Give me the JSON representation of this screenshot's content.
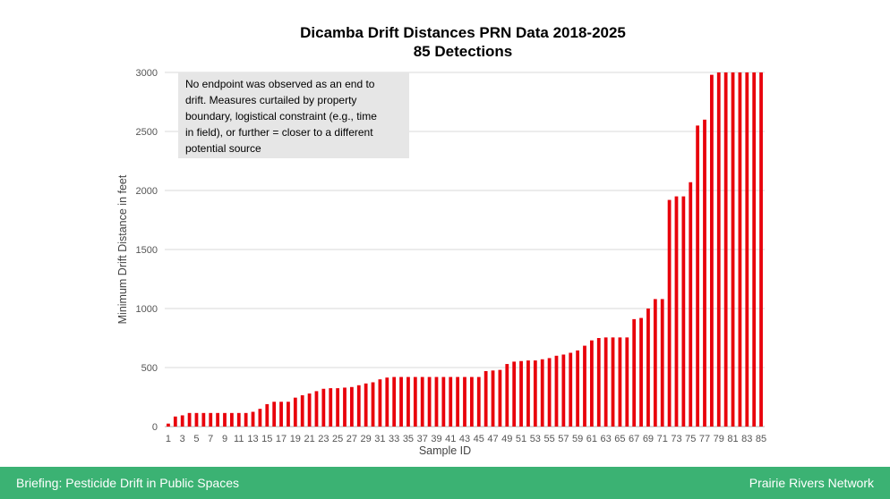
{
  "chart_data": {
    "type": "bar",
    "title": "Dicamba Drift Distances PRN Data 2018-2025",
    "subtitle": "85 Detections",
    "xlabel": "Sample ID",
    "ylabel": "Minimum Drift Distance in feet",
    "ylim": [
      0,
      3000
    ],
    "yticks": [
      0,
      500,
      1000,
      1500,
      2000,
      2500,
      3000
    ],
    "grid": true,
    "bar_color": "#e8000b",
    "categories": [
      "1",
      "2",
      "3",
      "4",
      "5",
      "6",
      "7",
      "8",
      "9",
      "10",
      "11",
      "12",
      "13",
      "14",
      "15",
      "16",
      "17",
      "18",
      "19",
      "20",
      "21",
      "22",
      "23",
      "24",
      "25",
      "26",
      "27",
      "28",
      "29",
      "30",
      "31",
      "32",
      "33",
      "34",
      "35",
      "36",
      "37",
      "38",
      "39",
      "40",
      "41",
      "42",
      "43",
      "44",
      "45",
      "46",
      "47",
      "48",
      "49",
      "50",
      "51",
      "52",
      "53",
      "54",
      "55",
      "56",
      "57",
      "58",
      "59",
      "60",
      "61",
      "62",
      "63",
      "64",
      "65",
      "66",
      "67",
      "68",
      "69",
      "70",
      "71",
      "72",
      "73",
      "74",
      "75",
      "76",
      "77",
      "78",
      "79",
      "80",
      "81",
      "82",
      "83",
      "84",
      "85"
    ],
    "xtick_labels": [
      "1",
      "3",
      "5",
      "7",
      "9",
      "11",
      "13",
      "15",
      "17",
      "19",
      "21",
      "23",
      "25",
      "27",
      "29",
      "31",
      "33",
      "35",
      "37",
      "39",
      "41",
      "43",
      "45",
      "47",
      "49",
      "51",
      "53",
      "55",
      "57",
      "59",
      "61",
      "63",
      "65",
      "67",
      "69",
      "71",
      "73",
      "75",
      "77",
      "79",
      "81",
      "83",
      "85"
    ],
    "values": [
      25,
      85,
      95,
      115,
      115,
      115,
      115,
      115,
      115,
      115,
      115,
      115,
      125,
      150,
      190,
      210,
      210,
      210,
      245,
      265,
      280,
      300,
      320,
      325,
      325,
      330,
      335,
      350,
      365,
      375,
      400,
      415,
      420,
      420,
      420,
      420,
      420,
      420,
      420,
      420,
      420,
      420,
      420,
      420,
      420,
      470,
      475,
      480,
      530,
      550,
      555,
      560,
      560,
      570,
      580,
      600,
      610,
      625,
      645,
      685,
      730,
      750,
      755,
      755,
      755,
      755,
      910,
      920,
      1000,
      1080,
      1080,
      1920,
      1950,
      1950,
      2070,
      2550,
      2600,
      2980,
      3000,
      3000,
      3000,
      3000,
      3000,
      3000,
      3000
    ],
    "annotation": "No endpoint was observed as an end to drift.  Measures curtailed by property boundary, logistical constraint (e.g., time in field), or further = closer to a different potential source"
  },
  "annotation_lines": [
    "No endpoint was observed as an end to",
    "drift.  Measures curtailed by property",
    "boundary, logistical constraint (e.g., time",
    "in field), or further = closer to a different",
    "potential source"
  ],
  "footer": {
    "left": "Briefing: Pesticide Drift in Public Spaces",
    "right": "Prairie Rivers Network"
  }
}
